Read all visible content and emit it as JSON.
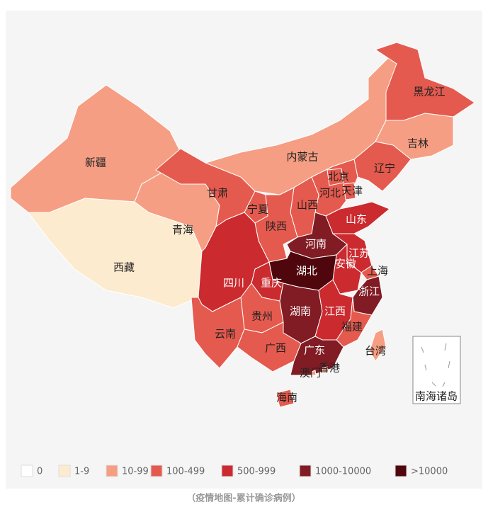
{
  "legend": [
    {
      "label": "0",
      "color": "#ffffff"
    },
    {
      "label": "1-9",
      "color": "#fdebcf"
    },
    {
      "label": "10-99",
      "color": "#f59e83"
    },
    {
      "label": "100-499",
      "color": "#e55a4e"
    },
    {
      "label": "500-999",
      "color": "#cb2a2f"
    },
    {
      "label": "1000-10000",
      "color": "#811c24"
    },
    {
      "label": ">10000",
      "color": "#4f070d"
    }
  ],
  "provinces": [
    {
      "name": "新疆",
      "level": 2
    },
    {
      "name": "西藏",
      "level": 1
    },
    {
      "name": "青海",
      "level": 2
    },
    {
      "name": "甘肃",
      "level": 3
    },
    {
      "name": "内蒙古",
      "level": 2
    },
    {
      "name": "黑龙江",
      "level": 3
    },
    {
      "name": "吉林",
      "level": 2
    },
    {
      "name": "辽宁",
      "level": 3
    },
    {
      "name": "河北",
      "level": 3
    },
    {
      "name": "北京",
      "level": 3
    },
    {
      "name": "天津",
      "level": 3
    },
    {
      "name": "山西",
      "level": 3
    },
    {
      "name": "宁夏",
      "level": 3
    },
    {
      "name": "陕西",
      "level": 3
    },
    {
      "name": "山东",
      "level": 4
    },
    {
      "name": "河南",
      "level": 5
    },
    {
      "name": "江苏",
      "level": 4
    },
    {
      "name": "安徽",
      "level": 4
    },
    {
      "name": "上海",
      "level": 3
    },
    {
      "name": "湖北",
      "level": 6
    },
    {
      "name": "浙江",
      "level": 5
    },
    {
      "name": "重庆",
      "level": 4
    },
    {
      "name": "四川",
      "level": 4
    },
    {
      "name": "贵州",
      "level": 3
    },
    {
      "name": "湖南",
      "level": 5
    },
    {
      "name": "江西",
      "level": 4
    },
    {
      "name": "福建",
      "level": 3
    },
    {
      "name": "云南",
      "level": 3
    },
    {
      "name": "广西",
      "level": 3
    },
    {
      "name": "广东",
      "level": 5
    },
    {
      "name": "海南",
      "level": 3
    },
    {
      "name": "台湾",
      "level": 2
    },
    {
      "name": "香港",
      "level": 2
    },
    {
      "name": "澳门",
      "level": 2
    }
  ],
  "south_china_sea": "南海诸岛",
  "caption": "（疫情地图-累计确诊病例）"
}
